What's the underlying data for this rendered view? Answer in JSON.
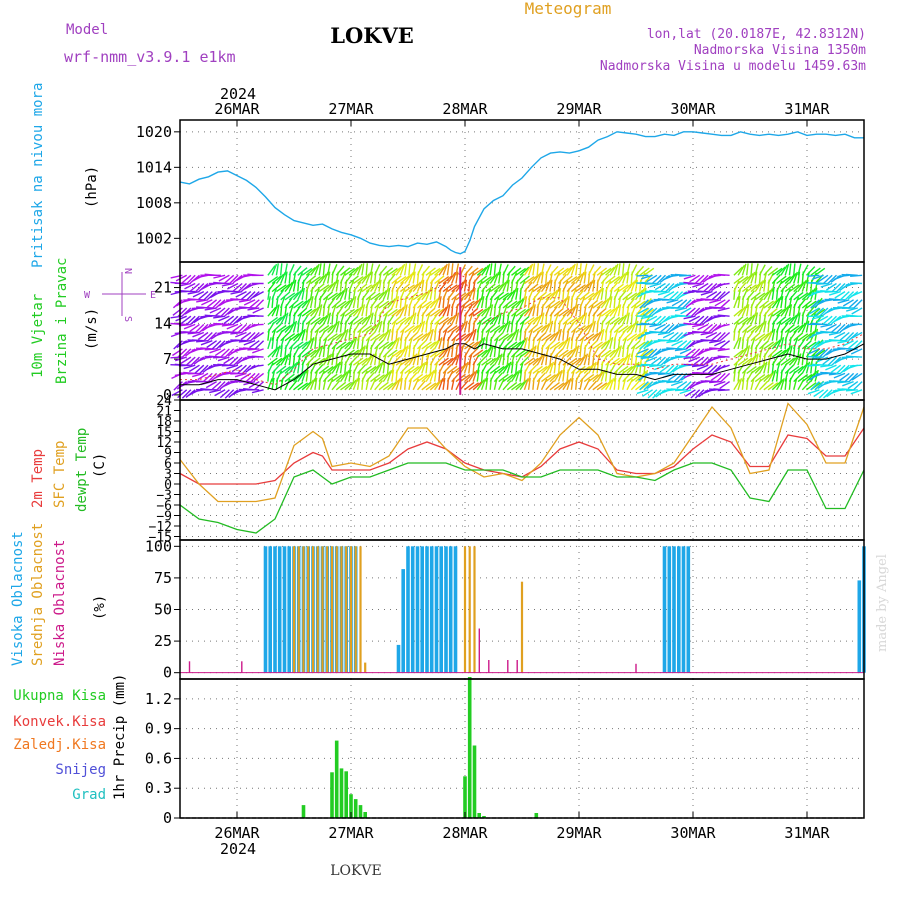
{
  "header": {
    "model_label": "Model",
    "model_value": "wrf-nmm_v3.9.1  e1km",
    "station": "LOKVE",
    "product": "Meteogram",
    "coords": "lon,lat (20.0187E, 42.8312N)",
    "elevation": "Nadmorska Visina 1350m",
    "model_elevation": "Nadmorska Visina u modelu 1459.63m",
    "year": "2024",
    "footer_station": "LOKVE",
    "credit": "made by Angel"
  },
  "colors": {
    "pressure": "#1ea7e8",
    "wind_label": "#22cc22",
    "temp2m": "#e83c3c",
    "sfc": "#e0a020",
    "dewpt": "#22bb22",
    "high_cloud": "#1ea7e8",
    "mid_cloud": "#e0a020",
    "low_cloud": "#cc1a8a",
    "total_precip": "#22cc22",
    "conv_precip": "#e83c3c",
    "frz_precip": "#f07820",
    "snow": "#5050d8",
    "hail": "#20c0c0",
    "wind_compass": "#a040c0"
  },
  "chart_data": [
    {
      "type": "line",
      "panel": "pressure",
      "title": "Pritisak na nivou mora",
      "ylabel": "(hPa)",
      "ylim": [
        998,
        1022
      ],
      "yticks": [
        1002,
        1008,
        1014,
        1020
      ],
      "x_unit": "hours from 2024-03-25 12:00 UTC",
      "xlim": [
        0,
        144
      ],
      "date_labels": [
        "26MAR",
        "27MAR",
        "28MAR",
        "29MAR",
        "30MAR",
        "31MAR"
      ],
      "date_hours": [
        12,
        36,
        60,
        84,
        108,
        132
      ],
      "grid": true,
      "series": [
        {
          "name": "Pritisak na nivou mora",
          "x": [
            0,
            2,
            4,
            6,
            8,
            10,
            12,
            14,
            16,
            18,
            20,
            22,
            24,
            26,
            28,
            30,
            32,
            34,
            36,
            38,
            40,
            42,
            44,
            46,
            48,
            50,
            52,
            54,
            56,
            57,
            58,
            59,
            60,
            61,
            62,
            64,
            66,
            68,
            70,
            72,
            74,
            76,
            78,
            80,
            82,
            84,
            86,
            88,
            90,
            92,
            94,
            96,
            98,
            100,
            102,
            104,
            106,
            108,
            110,
            112,
            114,
            116,
            118,
            120,
            122,
            124,
            126,
            128,
            130,
            132,
            134,
            136,
            138,
            140,
            142,
            144
          ],
          "values": [
            1011.5,
            1011.2,
            1012.0,
            1012.4,
            1013.2,
            1013.4,
            1012.6,
            1011.8,
            1010.6,
            1009.0,
            1007.2,
            1006.0,
            1005.0,
            1004.6,
            1004.2,
            1004.4,
            1003.6,
            1003.0,
            1002.6,
            1002.0,
            1001.2,
            1000.8,
            1000.6,
            1000.8,
            1000.6,
            1001.2,
            1001.0,
            1001.4,
            1000.6,
            1000.0,
            999.6,
            999.4,
            999.8,
            1001.6,
            1004.0,
            1007.0,
            1008.4,
            1009.2,
            1011.0,
            1012.2,
            1014.0,
            1015.6,
            1016.4,
            1016.6,
            1016.4,
            1016.8,
            1017.4,
            1018.6,
            1019.2,
            1020.0,
            1019.8,
            1019.6,
            1019.2,
            1019.2,
            1019.6,
            1019.4,
            1020.0,
            1020.0,
            1019.8,
            1019.6,
            1019.4,
            1019.4,
            1020.0,
            1019.6,
            1019.4,
            1019.6,
            1019.4,
            1019.6,
            1020.0,
            1019.4,
            1019.6,
            1019.6,
            1019.4,
            1019.6,
            1019.0,
            1019.0
          ]
        }
      ]
    },
    {
      "type": "line",
      "panel": "wind",
      "title": "10m Vjetar Brzina i Pravac",
      "ylabel": "(m/s)",
      "ylim": [
        -1,
        26
      ],
      "yticks": [
        0,
        7,
        14,
        21
      ],
      "compass": {
        "north": "N",
        "south": "S",
        "west": "W",
        "east": "E"
      },
      "series": [
        {
          "name": "speed",
          "x": [
            0,
            4,
            8,
            12,
            16,
            20,
            24,
            28,
            32,
            36,
            40,
            44,
            48,
            52,
            56,
            58,
            60,
            62,
            64,
            68,
            72,
            76,
            80,
            84,
            88,
            92,
            96,
            100,
            104,
            108,
            112,
            116,
            120,
            124,
            128,
            132,
            136,
            140,
            144
          ],
          "values": [
            2,
            2,
            3,
            3,
            2,
            1,
            3,
            6,
            7,
            8,
            8,
            6,
            7,
            8,
            9,
            10,
            10,
            9,
            10,
            9,
            9,
            8,
            7,
            5,
            5,
            4,
            4,
            3,
            4,
            4,
            4,
            5,
            6,
            7,
            8,
            7,
            7,
            8,
            10
          ]
        },
        {
          "name": "gust",
          "x": [
            0,
            4,
            8,
            12,
            16,
            20,
            24,
            28,
            32,
            36,
            40,
            44,
            48,
            52,
            56,
            58,
            60,
            62,
            64,
            68,
            72,
            76,
            80,
            84,
            88,
            92,
            96,
            100,
            104,
            108,
            112,
            116,
            120,
            124,
            128,
            132,
            136,
            140,
            144
          ],
          "values": [
            3,
            3,
            4,
            5,
            3,
            2,
            5,
            9,
            10,
            11,
            12,
            18,
            19,
            20,
            22,
            24,
            23,
            15,
            14,
            16,
            17,
            19,
            19,
            14,
            7,
            6,
            6,
            5,
            6,
            6,
            6,
            7,
            8,
            9,
            10,
            9,
            9,
            10,
            12
          ]
        }
      ]
    },
    {
      "type": "line",
      "panel": "temperature",
      "title": "2m Temp / SFC Temp / dewpt Temp",
      "series_labels": [
        "2m Temp",
        "SFC Temp",
        "dewpt Temp"
      ],
      "ylabel": "(C)",
      "ylim": [
        -16,
        24
      ],
      "yticks": [
        -15,
        -12,
        -9,
        -6,
        -3,
        0,
        3,
        6,
        9,
        12,
        15,
        18,
        21,
        24
      ],
      "series": [
        {
          "name": "2m Temp",
          "x": [
            0,
            4,
            8,
            12,
            16,
            20,
            24,
            28,
            30,
            32,
            36,
            40,
            44,
            48,
            52,
            56,
            60,
            64,
            68,
            72,
            76,
            80,
            84,
            88,
            92,
            96,
            100,
            104,
            108,
            112,
            116,
            120,
            124,
            128,
            132,
            136,
            140,
            144
          ],
          "values": [
            3,
            0,
            0,
            0,
            0,
            1,
            6,
            9,
            8,
            4,
            4,
            4,
            6,
            10,
            12,
            10,
            6,
            4,
            3,
            2,
            5,
            10,
            12,
            10,
            4,
            3,
            3,
            5,
            10,
            14,
            12,
            5,
            5,
            14,
            13,
            8,
            8,
            16
          ]
        },
        {
          "name": "SFC Temp",
          "x": [
            0,
            4,
            8,
            12,
            16,
            20,
            24,
            28,
            30,
            32,
            36,
            40,
            44,
            48,
            52,
            56,
            60,
            64,
            68,
            72,
            76,
            80,
            84,
            88,
            92,
            96,
            100,
            104,
            108,
            112,
            116,
            120,
            124,
            128,
            132,
            136,
            140,
            144
          ],
          "values": [
            7,
            0,
            -5,
            -5,
            -5,
            -4,
            11,
            15,
            13,
            5,
            6,
            5,
            8,
            16,
            16,
            10,
            5,
            2,
            3,
            1,
            6,
            14,
            19,
            14,
            3,
            2,
            3,
            6,
            14,
            22,
            16,
            3,
            4,
            23,
            17,
            6,
            6,
            22
          ]
        },
        {
          "name": "dewpt Temp",
          "x": [
            0,
            4,
            8,
            12,
            16,
            20,
            24,
            28,
            30,
            32,
            36,
            40,
            44,
            48,
            52,
            56,
            60,
            64,
            68,
            72,
            76,
            80,
            84,
            88,
            92,
            96,
            100,
            104,
            108,
            112,
            116,
            120,
            124,
            128,
            132,
            136,
            140,
            144
          ],
          "values": [
            -6,
            -10,
            -11,
            -13,
            -14,
            -10,
            2,
            4,
            2,
            0,
            2,
            2,
            4,
            6,
            6,
            6,
            4,
            4,
            4,
            2,
            2,
            4,
            4,
            4,
            2,
            2,
            1,
            4,
            6,
            6,
            4,
            -4,
            -5,
            4,
            4,
            -7,
            -7,
            4
          ]
        }
      ]
    },
    {
      "type": "bar",
      "panel": "clouds",
      "ylabel": "(%)",
      "ylim": [
        -5,
        105
      ],
      "yticks": [
        0,
        25,
        50,
        75,
        100
      ],
      "series": [
        {
          "name": "Visoka Oblacnost",
          "x": [
            18,
            19,
            20,
            21,
            22,
            23,
            24,
            25,
            26,
            27,
            28,
            29,
            30,
            31,
            32,
            33,
            34,
            35,
            36,
            37,
            46,
            47,
            48,
            49,
            50,
            51,
            52,
            53,
            54,
            55,
            56,
            57,
            58,
            102,
            103,
            104,
            105,
            106,
            107,
            143,
            144
          ],
          "values": [
            100,
            100,
            100,
            100,
            100,
            100,
            100,
            100,
            100,
            100,
            100,
            100,
            100,
            100,
            100,
            100,
            100,
            100,
            100,
            100,
            22,
            82,
            100,
            100,
            100,
            100,
            100,
            100,
            100,
            100,
            100,
            100,
            100,
            100,
            100,
            100,
            100,
            100,
            100,
            73,
            100
          ]
        },
        {
          "name": "Srednja Oblacnost",
          "x": [
            24,
            25,
            26,
            27,
            28,
            29,
            30,
            31,
            32,
            33,
            34,
            35,
            36,
            37,
            38,
            39,
            60,
            61,
            62,
            72
          ],
          "values": [
            100,
            100,
            100,
            100,
            100,
            100,
            100,
            100,
            100,
            100,
            100,
            100,
            100,
            100,
            100,
            8,
            100,
            100,
            100,
            72
          ]
        },
        {
          "name": "Niska Oblacnost",
          "x": [
            2,
            13,
            63,
            65,
            69,
            71,
            96
          ],
          "values": [
            9,
            9,
            35,
            10,
            10,
            10,
            7
          ]
        }
      ]
    },
    {
      "type": "bar",
      "panel": "precipitation",
      "ylabel": "1hr Precip (mm)",
      "ylim": [
        0,
        1.4
      ],
      "yticks": [
        0,
        0.3,
        0.6,
        0.9,
        1.2
      ],
      "legend": [
        "Ukupna Kisa",
        "Konvek.Kisa",
        "Zaledj.Kisa",
        "Snijeg",
        "Grad"
      ],
      "series": [
        {
          "name": "Ukupna Kisa",
          "x": [
            26,
            32,
            33,
            34,
            35,
            36,
            37,
            38,
            39,
            60,
            61,
            62,
            63,
            64,
            75
          ],
          "values": [
            0.13,
            0.46,
            0.78,
            0.5,
            0.47,
            0.24,
            0.19,
            0.13,
            0.06,
            0.42,
            1.42,
            0.73,
            0.05,
            0.02,
            0.05
          ]
        }
      ]
    }
  ]
}
